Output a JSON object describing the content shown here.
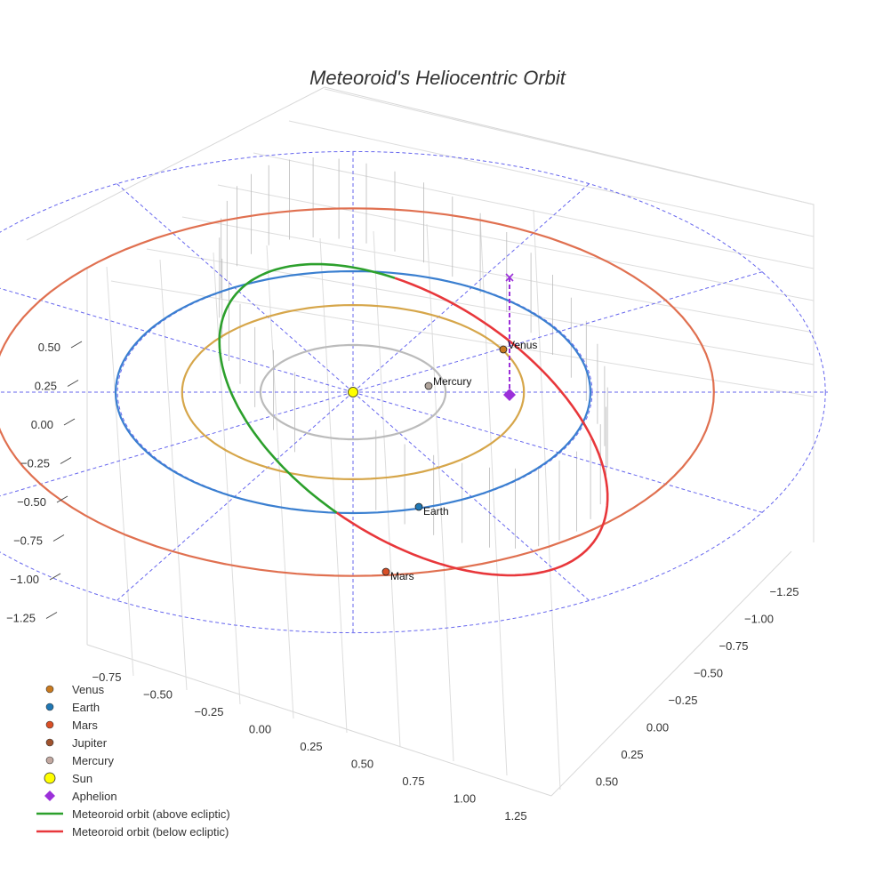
{
  "chart_data": {
    "type": "3d-orbit-plot",
    "title": "Meteoroid's Heliocentric Orbit",
    "z_axis": {
      "ticks": [
        "0.50",
        "0.25",
        "0.00",
        "−0.25",
        "−0.50",
        "−0.75",
        "−1.00",
        "−1.25"
      ]
    },
    "x_axis": {
      "ticks": [
        "−0.75",
        "−0.50",
        "−0.25",
        "0.00",
        "0.25",
        "0.50",
        "0.75",
        "1.00",
        "1.25"
      ]
    },
    "y_axis": {
      "ticks": [
        "−1.25",
        "−1.00",
        "−0.75",
        "−0.50",
        "−0.25",
        "0.00",
        "0.25",
        "0.50"
      ]
    },
    "orbits": [
      {
        "name": "Mercury orbit",
        "radius_au": 0.39,
        "color": "#bbbbbb"
      },
      {
        "name": "Venus orbit",
        "radius_au": 0.72,
        "color": "#d6a64a"
      },
      {
        "name": "Earth orbit",
        "radius_au": 1.0,
        "color": "#3a7fd0"
      },
      {
        "name": "Mars orbit",
        "radius_au": 1.52,
        "color": "#e07050"
      }
    ],
    "bodies": [
      {
        "name": "Venus",
        "label": "Venus",
        "color": "#c97a1f"
      },
      {
        "name": "Earth",
        "label": "Earth",
        "color": "#1f77b4"
      },
      {
        "name": "Mars",
        "label": "Mars",
        "color": "#d94f26"
      },
      {
        "name": "Mercury",
        "label": "Mercury",
        "color": "#b0a49b"
      },
      {
        "name": "Sun",
        "label": "",
        "color": "#ffff00"
      },
      {
        "name": "Aphelion",
        "label": "",
        "color": "#9b30d9"
      }
    ],
    "meteoroid": {
      "above_color": "#2ca02c",
      "below_color": "#e8373b",
      "perihelion_au": 0.99,
      "aphelion_au": 1.73
    },
    "legend": [
      {
        "label": "Venus",
        "symbol": "circle",
        "color": "#c97a1f"
      },
      {
        "label": "Earth",
        "symbol": "circle",
        "color": "#1f77b4"
      },
      {
        "label": "Mars",
        "symbol": "circle",
        "color": "#d94f26"
      },
      {
        "label": "Jupiter",
        "symbol": "circle",
        "color": "#a0522d"
      },
      {
        "label": "Mercury",
        "symbol": "circle",
        "color": "#c2a8a0"
      },
      {
        "label": "Sun",
        "symbol": "big-circle",
        "color": "#ffff00"
      },
      {
        "label": "Aphelion",
        "symbol": "diamond",
        "color": "#9b30d9"
      },
      {
        "label": "Meteoroid orbit (above ecliptic)",
        "symbol": "line",
        "color": "#2ca02c"
      },
      {
        "label": "Meteoroid orbit (below ecliptic)",
        "symbol": "line",
        "color": "#e8373b"
      }
    ]
  }
}
